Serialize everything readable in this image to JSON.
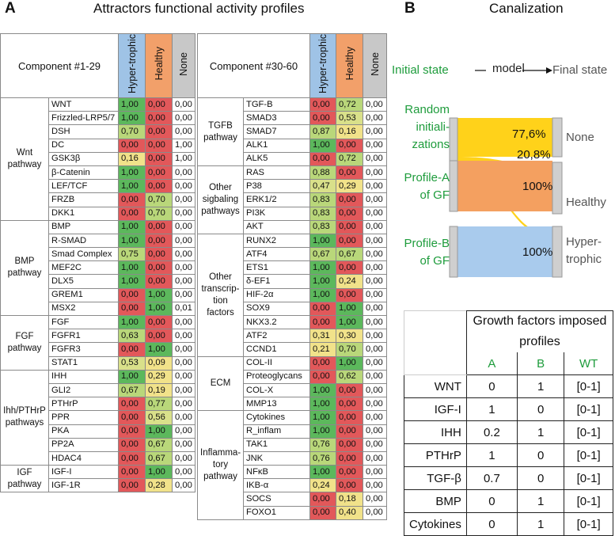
{
  "panel_a": {
    "letter": "A",
    "title": "Attractors functional activity profiles",
    "columns": [
      "Hyper-trophic",
      "Healthy",
      "None"
    ],
    "col_colors": {
      "hyper": "#9fc3e6",
      "healthy": "#f2a06a",
      "none": "#c8c8c8"
    },
    "left": {
      "component": "Component #1-29",
      "groups": [
        {
          "name": "Wnt pathway",
          "rows": [
            {
              "label": "WNT",
              "v": [
                "1,00",
                "0,00",
                "0,00"
              ]
            },
            {
              "label": "Frizzled-LRP5/7",
              "v": [
                "1,00",
                "0,00",
                "0,00"
              ]
            },
            {
              "label": "DSH",
              "v": [
                "0,70",
                "0,00",
                "0,00"
              ]
            },
            {
              "label": "DC",
              "v": [
                "0,00",
                "0,00",
                "1,00"
              ]
            },
            {
              "label": "GSK3β",
              "v": [
                "0,16",
                "0,00",
                "1,00"
              ]
            },
            {
              "label": "β-Catenin",
              "v": [
                "1,00",
                "0,00",
                "0,00"
              ]
            },
            {
              "label": "LEF/TCF",
              "v": [
                "1,00",
                "0,00",
                "0,00"
              ]
            },
            {
              "label": "FRZB",
              "v": [
                "0,00",
                "0,70",
                "0,00"
              ]
            },
            {
              "label": "DKK1",
              "v": [
                "0,00",
                "0,70",
                "0,00"
              ]
            }
          ]
        },
        {
          "name": "BMP pathway",
          "rows": [
            {
              "label": "BMP",
              "v": [
                "1,00",
                "0,00",
                "0,00"
              ]
            },
            {
              "label": "R-SMAD",
              "v": [
                "1,00",
                "0,00",
                "0,00"
              ]
            },
            {
              "label": "Smad Complex",
              "v": [
                "0,75",
                "0,00",
                "0,00"
              ]
            },
            {
              "label": "MEF2C",
              "v": [
                "1,00",
                "0,00",
                "0,00"
              ]
            },
            {
              "label": "DLX5",
              "v": [
                "1,00",
                "0,00",
                "0,00"
              ]
            },
            {
              "label": "GREM1",
              "v": [
                "0,00",
                "1,00",
                "0,00"
              ]
            },
            {
              "label": "MSX2",
              "v": [
                "0,00",
                "1,00",
                "0,01"
              ]
            }
          ]
        },
        {
          "name": "FGF pathway",
          "rows": [
            {
              "label": "FGF",
              "v": [
                "1,00",
                "0,00",
                "0,00"
              ]
            },
            {
              "label": "FGFR1",
              "v": [
                "0,63",
                "0,00",
                "0,00"
              ]
            },
            {
              "label": "FGFR3",
              "v": [
                "0,00",
                "1,00",
                "0,00"
              ]
            },
            {
              "label": "STAT1",
              "v": [
                "0,53",
                "0,09",
                "0,00"
              ]
            }
          ]
        },
        {
          "name": "Ihh/PTHrP pathways",
          "rows": [
            {
              "label": "IHH",
              "v": [
                "1,00",
                "0,29",
                "0,00"
              ]
            },
            {
              "label": "GLI2",
              "v": [
                "0,67",
                "0,19",
                "0,00"
              ]
            },
            {
              "label": "PTHrP",
              "v": [
                "0,00",
                "0,77",
                "0,00"
              ]
            },
            {
              "label": "PPR",
              "v": [
                "0,00",
                "0,56",
                "0,00"
              ]
            },
            {
              "label": "PKA",
              "v": [
                "0,00",
                "1,00",
                "0,00"
              ]
            },
            {
              "label": "PP2A",
              "v": [
                "0,00",
                "0,67",
                "0,00"
              ]
            },
            {
              "label": "HDAC4",
              "v": [
                "0,00",
                "0,67",
                "0,00"
              ]
            }
          ]
        },
        {
          "name": "IGF pathway",
          "rows": [
            {
              "label": "IGF-I",
              "v": [
                "0,00",
                "1,00",
                "0,00"
              ]
            },
            {
              "label": "IGF-1R",
              "v": [
                "0,00",
                "0,28",
                "0,00"
              ]
            }
          ]
        }
      ]
    },
    "right": {
      "component": "Component #30-60",
      "groups": [
        {
          "name": "TGFB pathway",
          "rows": [
            {
              "label": "TGF-B",
              "v": [
                "0,00",
                "0,72",
                "0,00"
              ]
            },
            {
              "label": "SMAD3",
              "v": [
                "0,00",
                "0,53",
                "0,00"
              ]
            },
            {
              "label": "SMAD7",
              "v": [
                "0,87",
                "0,16",
                "0,00"
              ]
            },
            {
              "label": "ALK1",
              "v": [
                "1,00",
                "0,00",
                "0,00"
              ]
            },
            {
              "label": "ALK5",
              "v": [
                "0,00",
                "0,72",
                "0,00"
              ]
            }
          ]
        },
        {
          "name": "Other sigbaling pathways",
          "rows": [
            {
              "label": "RAS",
              "v": [
                "0,88",
                "0,00",
                "0,00"
              ]
            },
            {
              "label": "P38",
              "v": [
                "0,47",
                "0,29",
                "0,00"
              ]
            },
            {
              "label": "ERK1/2",
              "v": [
                "0,83",
                "0,00",
                "0,00"
              ]
            },
            {
              "label": "PI3K",
              "v": [
                "0,83",
                "0,00",
                "0,00"
              ]
            },
            {
              "label": "AKT",
              "v": [
                "0,83",
                "0,00",
                "0,00"
              ]
            }
          ]
        },
        {
          "name": "Other transcrip-tion factors",
          "rows": [
            {
              "label": "RUNX2",
              "v": [
                "1,00",
                "0,00",
                "0,00"
              ]
            },
            {
              "label": "ATF4",
              "v": [
                "0,67",
                "0,67",
                "0,00"
              ]
            },
            {
              "label": "ETS1",
              "v": [
                "1,00",
                "0,00",
                "0,00"
              ]
            },
            {
              "label": "δ-EF1",
              "v": [
                "1,00",
                "0,24",
                "0,00"
              ]
            },
            {
              "label": "HIF-2α",
              "v": [
                "1,00",
                "0,00",
                "0,00"
              ]
            },
            {
              "label": "SOX9",
              "v": [
                "0,00",
                "1,00",
                "0,00"
              ]
            },
            {
              "label": "NKX3.2",
              "v": [
                "0,00",
                "1,00",
                "0,00"
              ]
            },
            {
              "label": "ATF2",
              "v": [
                "0,31",
                "0,30",
                "0,00"
              ]
            },
            {
              "label": "CCND1",
              "v": [
                "0,21",
                "0,70",
                "0,00"
              ]
            }
          ]
        },
        {
          "name": "ECM",
          "rows": [
            {
              "label": "COL-II",
              "v": [
                "0,00",
                "1,00",
                "0,00"
              ]
            },
            {
              "label": "Proteoglycans",
              "v": [
                "0,00",
                "0,62",
                "0,00"
              ]
            },
            {
              "label": "COL-X",
              "v": [
                "1,00",
                "0,00",
                "0,00"
              ]
            },
            {
              "label": "MMP13",
              "v": [
                "1,00",
                "0,00",
                "0,00"
              ]
            }
          ]
        },
        {
          "name": "Inflamma-tory pathway",
          "rows": [
            {
              "label": "Cytokines",
              "v": [
                "1,00",
                "0,00",
                "0,00"
              ]
            },
            {
              "label": "R_inflam",
              "v": [
                "1,00",
                "0,00",
                "0,00"
              ]
            },
            {
              "label": "TAK1",
              "v": [
                "0,76",
                "0,00",
                "0,00"
              ]
            },
            {
              "label": "JNK",
              "v": [
                "0,76",
                "0,00",
                "0,00"
              ]
            },
            {
              "label": "NFκB",
              "v": [
                "1,00",
                "0,00",
                "0,00"
              ]
            },
            {
              "label": "IKB-α",
              "v": [
                "0,24",
                "0,00",
                "0,00"
              ]
            },
            {
              "label": "SOCS",
              "v": [
                "0,00",
                "0,18",
                "0,00"
              ]
            },
            {
              "label": "FOXO1",
              "v": [
                "0,00",
                "0,40",
                "0,00"
              ]
            }
          ]
        }
      ]
    }
  },
  "panel_b": {
    "letter": "B",
    "title": "Canalization",
    "initial_state": "Initial state",
    "model": "model",
    "final_state": "Final state",
    "sources": [
      "Random initiali-zations",
      "Profile-A of GF",
      "Profile-B of GF"
    ],
    "targets": [
      "None",
      "Healthy",
      "Hyper-trophic"
    ],
    "pct_none": "77,6%",
    "pct_healthy_random": "20,8%",
    "pct_healthy": "100%",
    "pct_hyper": "100%",
    "flow_colors": {
      "none": "#ffd21a",
      "healthy": "#f4a060",
      "hyper": "#a9cbed"
    }
  },
  "gf_table": {
    "title": "Growth factors imposed profiles",
    "columns": [
      "A",
      "B",
      "WT"
    ],
    "rows": [
      {
        "label": "WNT",
        "v": [
          "0",
          "1",
          "[0-1]"
        ]
      },
      {
        "label": "IGF-I",
        "v": [
          "1",
          "0",
          "[0-1]"
        ]
      },
      {
        "label": "IHH",
        "v": [
          "0.2",
          "1",
          "[0-1]"
        ]
      },
      {
        "label": "PTHrP",
        "v": [
          "1",
          "0",
          "[0-1]"
        ]
      },
      {
        "label": "TGF-β",
        "v": [
          "0.7",
          "0",
          "[0-1]"
        ]
      },
      {
        "label": "BMP",
        "v": [
          "0",
          "1",
          "[0-1]"
        ]
      },
      {
        "label": "Cytokines",
        "v": [
          "0",
          "1",
          "[0-1]"
        ]
      }
    ]
  }
}
